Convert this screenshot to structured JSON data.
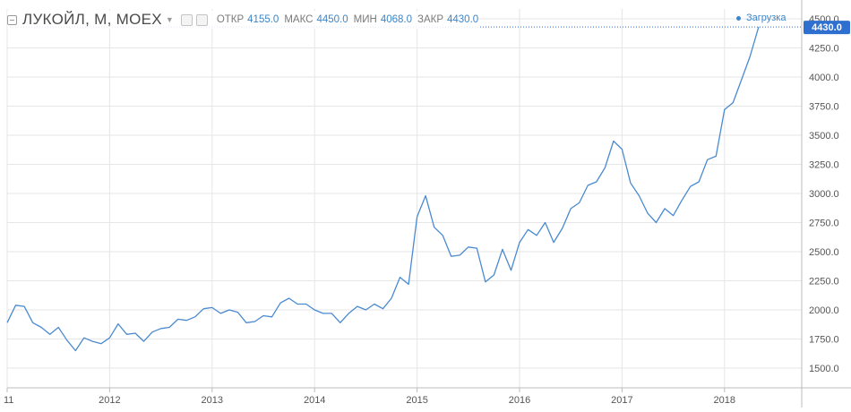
{
  "header": {
    "symbol": "ЛУКОЙЛ, М, MOEX",
    "open_label": "ОТКР",
    "open_value": "4155.0",
    "high_label": "МАКС",
    "high_value": "4450.0",
    "low_label": "МИН",
    "low_value": "4068.0",
    "close_label": "ЗАКР",
    "close_value": "4430.0",
    "loading": "Загрузка"
  },
  "chart_data": {
    "type": "line",
    "title": "ЛУКОЙЛ, М, MOEX",
    "xlabel": "",
    "ylabel": "",
    "x_ticks": [
      "11",
      "2012",
      "2013",
      "2014",
      "2015",
      "2016",
      "2017",
      "2018"
    ],
    "y_ticks": [
      1500,
      1750,
      2000,
      2250,
      2500,
      2750,
      3000,
      3250,
      3500,
      3750,
      4000,
      4250,
      4500
    ],
    "ylim": [
      1300,
      4560
    ],
    "xlim": [
      2011.0,
      2018.75
    ],
    "last_price": 4430.0,
    "last_price_label": "4430.0",
    "line_color": "#4a8ad0",
    "last_price_bg": "#2f6fcf",
    "grid": true,
    "series": [
      {
        "x": [
          2011.0,
          2011.0833,
          2011.1667,
          2011.25,
          2011.3333,
          2011.4167,
          2011.5,
          2011.5833,
          2011.6667,
          2011.75,
          2011.8333,
          2011.9167,
          2012.0,
          2012.0833,
          2012.1667,
          2012.25,
          2012.3333,
          2012.4167,
          2012.5,
          2012.5833,
          2012.6667,
          2012.75,
          2012.8333,
          2012.9167,
          2013.0,
          2013.0833,
          2013.1667,
          2013.25,
          2013.3333,
          2013.4167,
          2013.5,
          2013.5833,
          2013.6667,
          2013.75,
          2013.8333,
          2013.9167,
          2014.0,
          2014.0833,
          2014.1667,
          2014.25,
          2014.3333,
          2014.4167,
          2014.5,
          2014.5833,
          2014.6667,
          2014.75,
          2014.8333,
          2014.9167,
          2015.0,
          2015.0833,
          2015.1667,
          2015.25,
          2015.3333,
          2015.4167,
          2015.5,
          2015.5833,
          2015.6667,
          2015.75,
          2015.8333,
          2015.9167,
          2016.0,
          2016.0833,
          2016.1667,
          2016.25,
          2016.3333,
          2016.4167,
          2016.5,
          2016.5833,
          2016.6667,
          2016.75,
          2016.8333,
          2016.9167,
          2017.0,
          2017.0833,
          2017.1667,
          2017.25,
          2017.3333,
          2017.4167,
          2017.5,
          2017.5833,
          2017.6667,
          2017.75,
          2017.8333,
          2017.9167,
          2018.0,
          2018.0833,
          2018.1667,
          2018.25,
          2018.3333
        ],
        "values": [
          1890,
          2040,
          2030,
          1890,
          1850,
          1790,
          1850,
          1740,
          1650,
          1760,
          1730,
          1710,
          1760,
          1880,
          1790,
          1800,
          1730,
          1810,
          1840,
          1850,
          1920,
          1910,
          1940,
          2010,
          2020,
          1970,
          2000,
          1980,
          1890,
          1900,
          1950,
          1940,
          2060,
          2100,
          2050,
          2050,
          2000,
          1970,
          1970,
          1890,
          1970,
          2030,
          2000,
          2050,
          2010,
          2100,
          2280,
          2220,
          2800,
          2980,
          2710,
          2640,
          2460,
          2470,
          2540,
          2530,
          2240,
          2300,
          2520,
          2340,
          2580,
          2690,
          2640,
          2750,
          2580,
          2700,
          2870,
          2920,
          3070,
          3100,
          3220,
          3450,
          3380,
          3090,
          2980,
          2830,
          2750,
          2870,
          2810,
          2940,
          3060,
          3100,
          3290,
          3320,
          3720,
          3780,
          3980,
          4180,
          4430
        ]
      }
    ]
  }
}
